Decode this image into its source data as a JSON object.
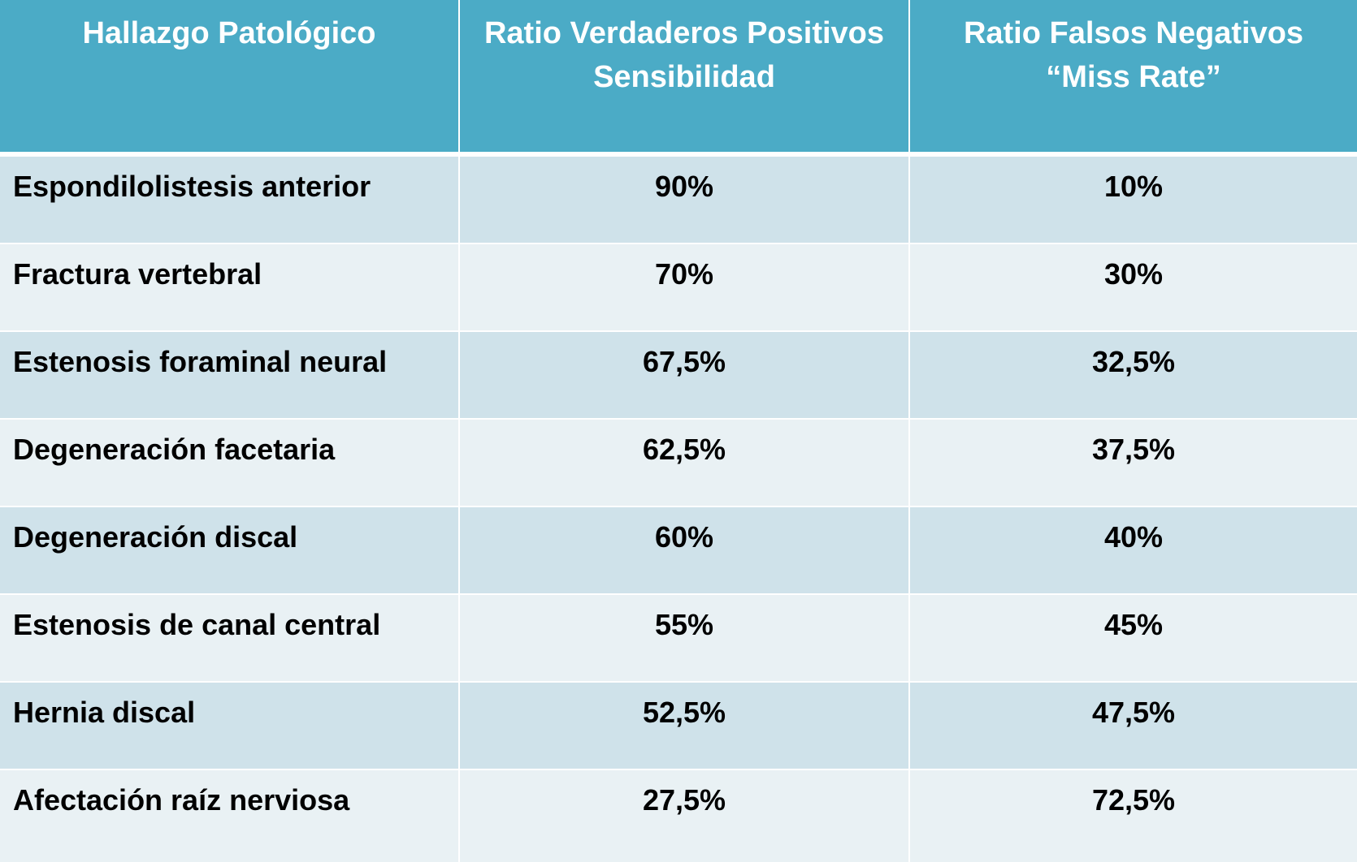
{
  "table": {
    "headers": [
      {
        "lines": [
          "Hallazgo Patológico"
        ]
      },
      {
        "lines": [
          "Ratio Verdaderos Positivos",
          "Sensibilidad"
        ]
      },
      {
        "lines": [
          "Ratio Falsos Negativos",
          "“Miss Rate”"
        ]
      }
    ],
    "rows": [
      {
        "finding": "Espondilolistesis anterior",
        "sensitivity": "90%",
        "miss_rate": "10%"
      },
      {
        "finding": "Fractura vertebral",
        "sensitivity": "70%",
        "miss_rate": "30%"
      },
      {
        "finding": "Estenosis foraminal neural",
        "sensitivity": "67,5%",
        "miss_rate": "32,5%"
      },
      {
        "finding": "Degeneración facetaria",
        "sensitivity": "62,5%",
        "miss_rate": "37,5%"
      },
      {
        "finding": "Degeneración discal",
        "sensitivity": "60%",
        "miss_rate": "40%"
      },
      {
        "finding": "Estenosis de canal central",
        "sensitivity": "55%",
        "miss_rate": "45%"
      },
      {
        "finding": "Hernia discal",
        "sensitivity": "52,5%",
        "miss_rate": "47,5%"
      },
      {
        "finding": "Afectación raíz nerviosa",
        "sensitivity": "27,5%",
        "miss_rate": "72,5%"
      }
    ],
    "colors": {
      "header_bg": "#4babc6",
      "header_text": "#ffffff",
      "row_odd_bg": "#cfe2ea",
      "row_even_bg": "#e9f1f4",
      "cell_text": "#000000"
    }
  }
}
